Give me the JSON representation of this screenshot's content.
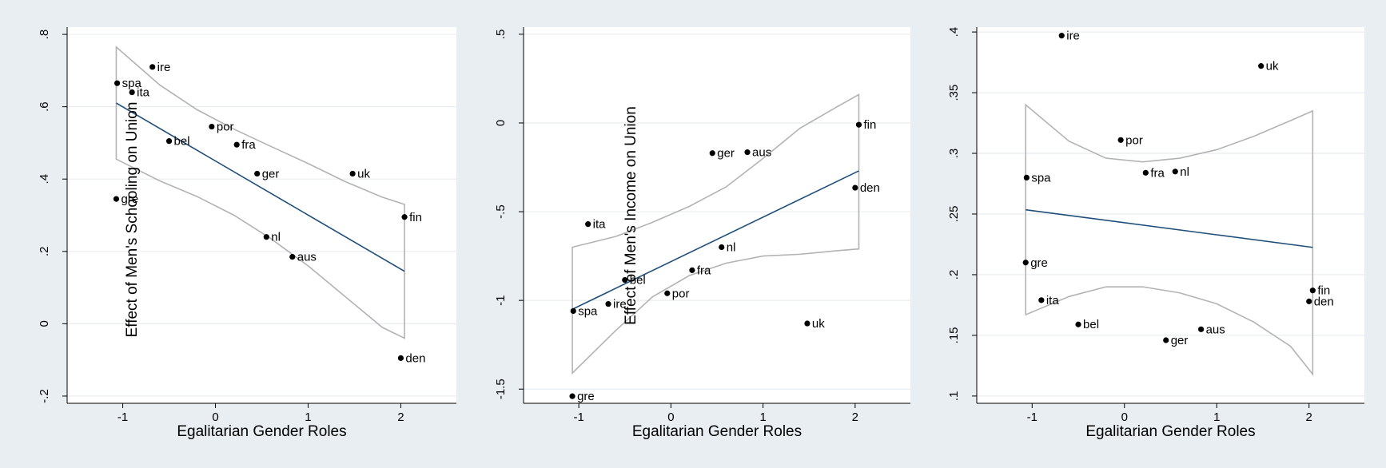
{
  "colors": {
    "background": "#e8eef2",
    "plot_bg": "#ffffff",
    "fit_line": "#1f4e79",
    "ci_band": "#b3b3b3",
    "grid": "#e8eef2",
    "points": "#000000"
  },
  "chart_data": [
    {
      "type": "scatter",
      "xlabel": "Egalitarian Gender Roles",
      "ylabel": "Effect of Men's Schooling on Union",
      "xlim": [
        -1.6,
        2.6
      ],
      "ylim": [
        -0.22,
        0.82
      ],
      "xticks": [
        -1,
        0,
        1,
        2
      ],
      "xtick_labels": [
        "-1",
        "0",
        "1",
        "2"
      ],
      "yticks": [
        -0.2,
        0,
        0.2,
        0.4,
        0.6,
        0.8
      ],
      "ytick_labels": [
        "-.2",
        "0",
        ".2",
        ".4",
        ".6",
        ".8"
      ],
      "grid": true,
      "points": [
        {
          "label": "ire",
          "x": -0.68,
          "y": 0.71
        },
        {
          "label": "spa",
          "x": -1.06,
          "y": 0.665
        },
        {
          "label": "ita",
          "x": -0.9,
          "y": 0.64
        },
        {
          "label": "por",
          "x": -0.04,
          "y": 0.545
        },
        {
          "label": "bel",
          "x": -0.5,
          "y": 0.505
        },
        {
          "label": "fra",
          "x": 0.23,
          "y": 0.495
        },
        {
          "label": "ger",
          "x": 0.45,
          "y": 0.415
        },
        {
          "label": "uk",
          "x": 1.48,
          "y": 0.415
        },
        {
          "label": "gre",
          "x": -1.07,
          "y": 0.345
        },
        {
          "label": "fin",
          "x": 2.04,
          "y": 0.295
        },
        {
          "label": "nl",
          "x": 0.55,
          "y": 0.24
        },
        {
          "label": "aus",
          "x": 0.83,
          "y": 0.185
        },
        {
          "label": "den",
          "x": 2.0,
          "y": -0.095
        }
      ],
      "fit": {
        "x": [
          -1.07,
          2.04
        ],
        "y": [
          0.61,
          0.145
        ]
      },
      "ci": {
        "x": [
          -1.07,
          -0.6,
          -0.2,
          0.2,
          0.6,
          1.0,
          1.4,
          1.8,
          2.04
        ],
        "upper": [
          0.765,
          0.66,
          0.592,
          0.538,
          0.49,
          0.443,
          0.393,
          0.35,
          0.33
        ],
        "lower": [
          0.455,
          0.395,
          0.352,
          0.3,
          0.235,
          0.16,
          0.075,
          -0.01,
          -0.04
        ]
      }
    },
    {
      "type": "scatter",
      "xlabel": "Egalitarian Gender Roles",
      "ylabel": "Effect of Men's Income on Union",
      "xlim": [
        -1.6,
        2.6
      ],
      "ylim": [
        -1.58,
        0.54
      ],
      "xticks": [
        -1,
        0,
        1,
        2
      ],
      "xtick_labels": [
        "-1",
        "0",
        "1",
        "2"
      ],
      "yticks": [
        -1.5,
        -1,
        -0.5,
        0,
        0.5
      ],
      "ytick_labels": [
        "-1.5",
        "-1",
        "-.5",
        "0",
        ".5"
      ],
      "grid": true,
      "points": [
        {
          "label": "fin",
          "x": 2.04,
          "y": -0.01
        },
        {
          "label": "ger",
          "x": 0.45,
          "y": -0.17
        },
        {
          "label": "aus",
          "x": 0.83,
          "y": -0.165
        },
        {
          "label": "den",
          "x": 2.0,
          "y": -0.365
        },
        {
          "label": "ita",
          "x": -0.9,
          "y": -0.57
        },
        {
          "label": "nl",
          "x": 0.55,
          "y": -0.7
        },
        {
          "label": "fra",
          "x": 0.23,
          "y": -0.83
        },
        {
          "label": "bel",
          "x": -0.5,
          "y": -0.885
        },
        {
          "label": "por",
          "x": -0.04,
          "y": -0.96
        },
        {
          "label": "ire",
          "x": -0.68,
          "y": -1.02
        },
        {
          "label": "spa",
          "x": -1.06,
          "y": -1.06
        },
        {
          "label": "uk",
          "x": 1.48,
          "y": -1.13
        },
        {
          "label": "gre",
          "x": -1.07,
          "y": -1.54
        }
      ],
      "fit": {
        "x": [
          -1.07,
          2.04
        ],
        "y": [
          -1.05,
          -0.27
        ]
      },
      "ci": {
        "x": [
          -1.07,
          -0.6,
          -0.2,
          0.2,
          0.6,
          1.0,
          1.4,
          1.8,
          2.04
        ],
        "upper": [
          -0.7,
          -0.64,
          -0.56,
          -0.47,
          -0.36,
          -0.2,
          -0.03,
          0.09,
          0.16
        ],
        "lower": [
          -1.41,
          -1.17,
          -0.98,
          -0.86,
          -0.79,
          -0.75,
          -0.74,
          -0.72,
          -0.71
        ]
      }
    },
    {
      "type": "scatter",
      "xlabel": "Egalitarian Gender Roles",
      "ylabel": "",
      "xlim": [
        -1.6,
        2.6
      ],
      "ylim": [
        0.094,
        0.404
      ],
      "xticks": [
        -1,
        0,
        1,
        2
      ],
      "xtick_labels": [
        "-1",
        "0",
        "1",
        "2"
      ],
      "yticks": [
        0.1,
        0.15,
        0.2,
        0.25,
        0.3,
        0.35,
        0.4
      ],
      "ytick_labels": [
        ".1",
        ".15",
        ".2",
        ".25",
        ".3",
        ".35",
        ".4"
      ],
      "grid": true,
      "points": [
        {
          "label": "ire",
          "x": -0.68,
          "y": 0.397
        },
        {
          "label": "uk",
          "x": 1.48,
          "y": 0.372
        },
        {
          "label": "por",
          "x": -0.04,
          "y": 0.311
        },
        {
          "label": "fra",
          "x": 0.23,
          "y": 0.284
        },
        {
          "label": "nl",
          "x": 0.55,
          "y": 0.285
        },
        {
          "label": "spa",
          "x": -1.06,
          "y": 0.28
        },
        {
          "label": "gre",
          "x": -1.07,
          "y": 0.21
        },
        {
          "label": "fin",
          "x": 2.04,
          "y": 0.187
        },
        {
          "label": "den",
          "x": 2.0,
          "y": 0.178
        },
        {
          "label": "ita",
          "x": -0.9,
          "y": 0.179
        },
        {
          "label": "bel",
          "x": -0.5,
          "y": 0.159
        },
        {
          "label": "aus",
          "x": 0.83,
          "y": 0.155
        },
        {
          "label": "ger",
          "x": 0.45,
          "y": 0.146
        }
      ],
      "fit": {
        "x": [
          -1.07,
          2.04
        ],
        "y": [
          0.2535,
          0.2225
        ]
      },
      "ci": {
        "x": [
          -1.07,
          -0.6,
          -0.2,
          0.2,
          0.6,
          1.0,
          1.4,
          1.8,
          2.04
        ],
        "upper": [
          0.34,
          0.31,
          0.296,
          0.293,
          0.296,
          0.303,
          0.314,
          0.327,
          0.335
        ],
        "lower": [
          0.167,
          0.182,
          0.19,
          0.19,
          0.185,
          0.176,
          0.161,
          0.141,
          0.118
        ]
      }
    }
  ]
}
